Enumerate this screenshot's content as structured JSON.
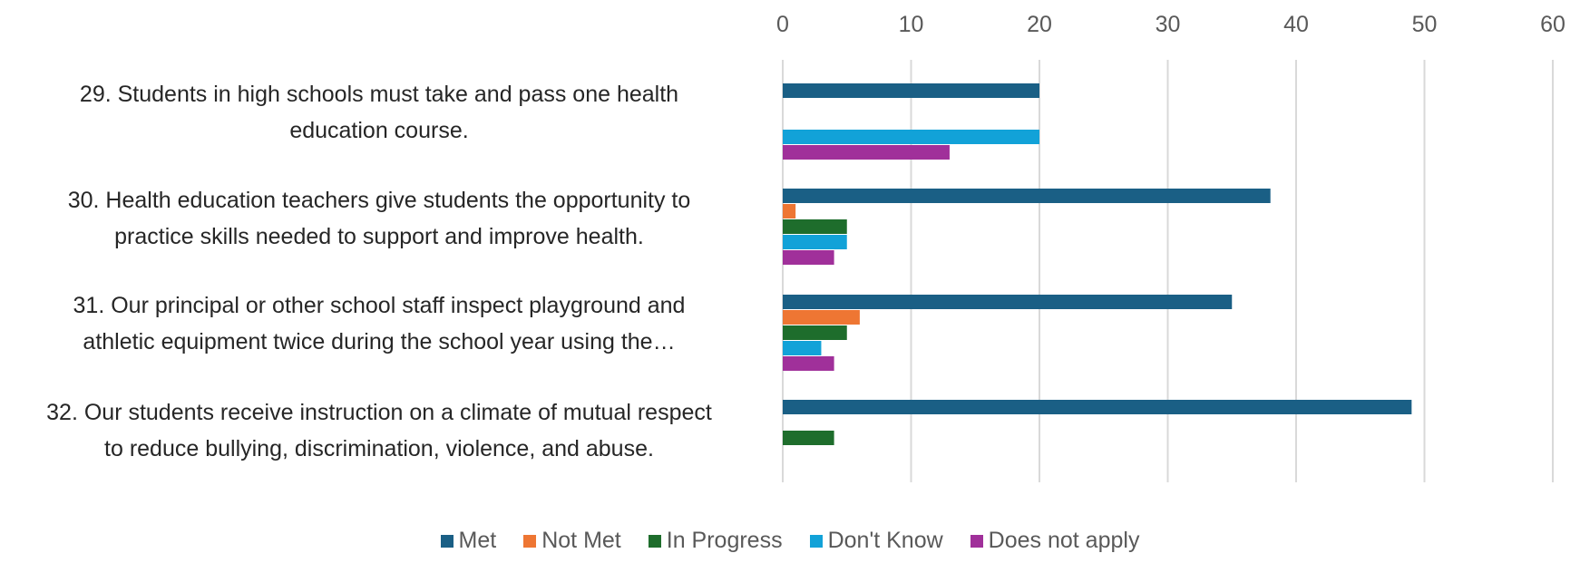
{
  "chart_data": {
    "type": "bar",
    "orientation": "horizontal",
    "categories": [
      "29. Students in high schools must take and pass one health education course.",
      "30. Health education teachers give students the opportunity to practice skills needed to support and improve health.",
      "31. Our principal or other school staff inspect playground and athletic equipment twice during the school year using the…",
      "32. Our students receive instruction on a climate of mutual respect to reduce bullying, discrimination, violence, and abuse."
    ],
    "series": [
      {
        "name": "Met",
        "color": "#1a5f85",
        "values": [
          20,
          38,
          35,
          49
        ]
      },
      {
        "name": "Not Met",
        "color": "#ee7633",
        "values": [
          0,
          1,
          6,
          0
        ]
      },
      {
        "name": "In Progress",
        "color": "#1e6d2c",
        "values": [
          0,
          5,
          5,
          4
        ]
      },
      {
        "name": "Don't Know",
        "color": "#12a2d8",
        "values": [
          20,
          5,
          3,
          0
        ]
      },
      {
        "name": "Does not apply",
        "color": "#a0309a",
        "values": [
          13,
          4,
          4,
          0
        ]
      }
    ],
    "xlim": [
      0,
      60
    ],
    "xticks": [
      "0",
      "10",
      "20",
      "30",
      "40",
      "50",
      "60"
    ],
    "grid": true,
    "legend_position": "bottom",
    "title": "",
    "xlabel": "",
    "ylabel": ""
  },
  "labels": {
    "cat0": [
      "29. Students in high schools must take and pass one health",
      "education course."
    ],
    "cat1": [
      "30. Health education teachers give students the opportunity to",
      "practice skills needed to support and improve health."
    ],
    "cat2": [
      "31. Our principal or other school staff inspect playground and",
      "athletic equipment twice during the school year using the…"
    ],
    "cat3": [
      "32. Our students receive instruction on a climate of mutual respect",
      "to reduce bullying, discrimination, violence, and abuse."
    ]
  },
  "legend": [
    {
      "name": "Met",
      "color": "#1a5f85"
    },
    {
      "name": "Not Met",
      "color": "#ee7633"
    },
    {
      "name": "In Progress",
      "color": "#1e6d2c"
    },
    {
      "name": "Don't Know",
      "color": "#12a2d8"
    },
    {
      "name": "Does not apply",
      "color": "#a0309a"
    }
  ]
}
